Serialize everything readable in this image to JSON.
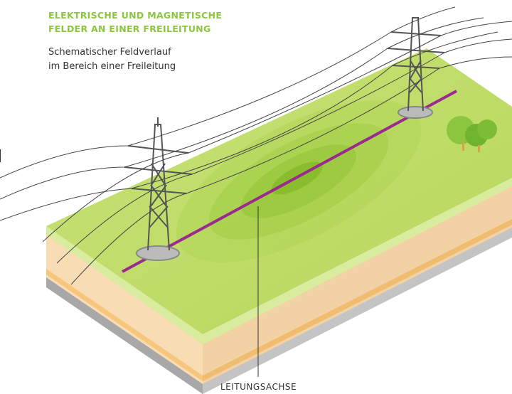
{
  "header": {
    "title": [
      "ELEKTRISCHE UND MAGNETISCHE",
      "FELDER AN EINER FREILEITUNG"
    ],
    "subtitle": [
      "Schematischer Feldverlauf",
      "im Bereich einer Freileitung"
    ]
  },
  "labels": {
    "axis": "LEITUNGSACHSE"
  }
}
